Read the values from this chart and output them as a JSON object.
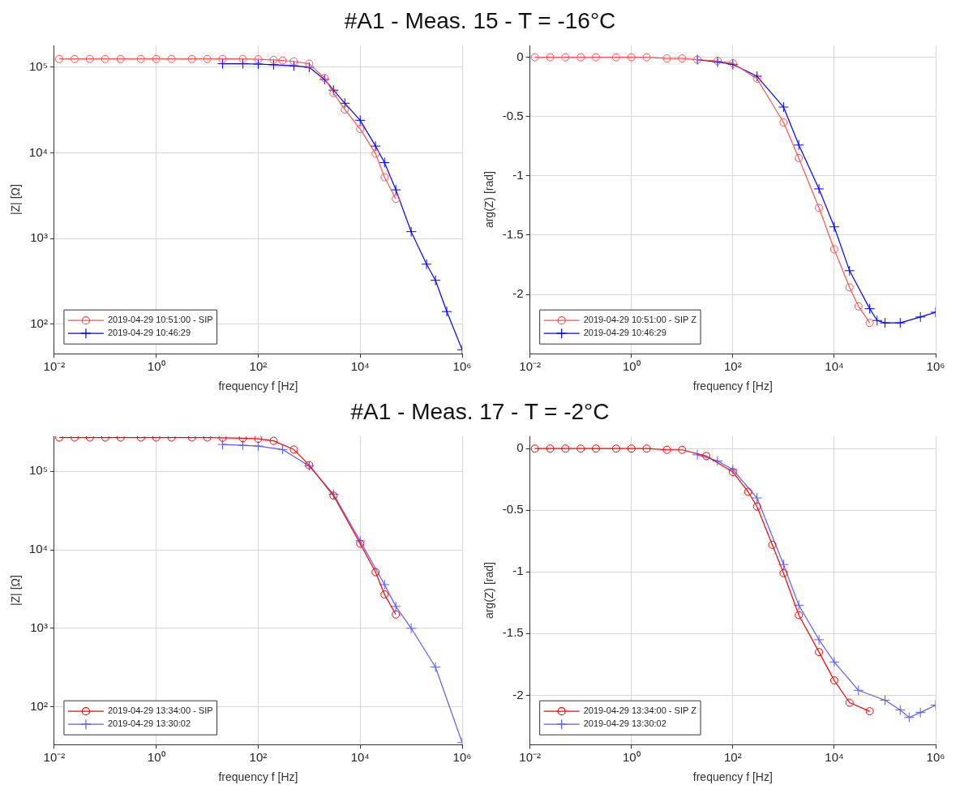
{
  "chart_data": [
    {
      "type": "line",
      "title": "#A1 - Meas. 15 - T = -16°C",
      "xlabel": "frequency f [Hz]",
      "ylabel": "|Z| [Ω]",
      "log": "xy",
      "grid": true,
      "legend": "bottom left",
      "xlim": [
        0.01,
        1000000
      ],
      "xticks": [
        {
          "value": 0.01,
          "label": "10⁻²"
        },
        {
          "value": 1,
          "label": "10⁰"
        },
        {
          "value": 100,
          "label": "10²"
        },
        {
          "value": 10000,
          "label": "10⁴"
        },
        {
          "value": 1000000,
          "label": "10⁶"
        }
      ],
      "ylim": [
        45,
        180000
      ],
      "yticks": [
        {
          "value": 100,
          "label": "10²"
        },
        {
          "value": 1000,
          "label": "10³"
        },
        {
          "value": 10000,
          "label": "10⁴"
        },
        {
          "value": 100000,
          "label": "10⁵"
        }
      ],
      "series": [
        {
          "name": "2019-04-29 10:51:00 - SIP",
          "color": "#ff5050",
          "marker": "circle",
          "x": [
            0.0125,
            0.025,
            0.05,
            0.1,
            0.2,
            0.5,
            1,
            2,
            5,
            10,
            20,
            50,
            100,
            200,
            300,
            500,
            1000,
            2000,
            3000,
            5000,
            10000,
            20000,
            30000,
            50000
          ],
          "values": [
            125000,
            125000,
            125000,
            125000,
            125000,
            125000,
            125000,
            125000,
            125000,
            125000,
            125000,
            125000,
            124000,
            122000,
            120000,
            117000,
            110000,
            75000,
            50000,
            32000,
            19000,
            9800,
            5200,
            2900
          ]
        },
        {
          "name": "2019-04-29 10:46:29",
          "color": "#0000ff",
          "marker": "cross",
          "x": [
            20,
            50,
            100,
            200,
            500,
            1000,
            2000,
            3000,
            5000,
            10000,
            20000,
            30000,
            50000,
            100000,
            200000,
            300000,
            500000,
            1000000
          ],
          "values": [
            110000,
            110000,
            109000,
            107000,
            104000,
            100000,
            72000,
            54000,
            38000,
            24000,
            12000,
            7700,
            3700,
            1200,
            500,
            324,
            140,
            50
          ]
        }
      ]
    },
    {
      "type": "line",
      "xlabel": "frequency f [Hz]",
      "ylabel": "arg(Z) [rad]",
      "log": "x",
      "grid": true,
      "legend": "bottom left",
      "xlim": [
        0.01,
        1000000
      ],
      "xticks": [
        {
          "value": 0.01,
          "label": "10⁻²"
        },
        {
          "value": 1,
          "label": "10⁰"
        },
        {
          "value": 100,
          "label": "10²"
        },
        {
          "value": 10000,
          "label": "10⁴"
        },
        {
          "value": 1000000,
          "label": "10⁶"
        }
      ],
      "ylim": [
        -2.5,
        0.1
      ],
      "yticks": [
        -2,
        -1.5,
        -1,
        -0.5,
        0
      ],
      "series": [
        {
          "name": "2019-04-29 10:51:00 - SIP Z",
          "color": "#ff5050",
          "marker": "circle",
          "x": [
            0.0125,
            0.025,
            0.05,
            0.1,
            0.2,
            0.5,
            1,
            2,
            5,
            10,
            20,
            50,
            100,
            300,
            1000,
            2000,
            5000,
            10000,
            20000,
            30000,
            50000
          ],
          "values": [
            0,
            0,
            0,
            0,
            0,
            0,
            0,
            0,
            -0.01,
            -0.01,
            -0.02,
            -0.03,
            -0.05,
            -0.18,
            -0.55,
            -0.85,
            -1.27,
            -1.62,
            -1.94,
            -2.1,
            -2.24
          ]
        },
        {
          "name": "2019-04-29 10:46:29",
          "color": "#0000ff",
          "marker": "cross",
          "x": [
            20,
            50,
            100,
            300,
            1000,
            2000,
            5000,
            10000,
            20000,
            50000,
            70000,
            100000,
            200000,
            500000,
            1000000
          ],
          "values": [
            -0.02,
            -0.04,
            -0.06,
            -0.16,
            -0.42,
            -0.74,
            -1.11,
            -1.43,
            -1.8,
            -2.12,
            -2.22,
            -2.24,
            -2.24,
            -2.19,
            -2.15
          ]
        }
      ]
    },
    {
      "type": "line",
      "title": "#A1 - Meas. 17 - T = -2°C",
      "xlabel": "frequency f [Hz]",
      "ylabel": "|Z| [Ω]",
      "log": "xy",
      "grid": true,
      "legend": "bottom left",
      "xlim": [
        0.01,
        1000000
      ],
      "xticks": [
        {
          "value": 0.01,
          "label": "10⁻²"
        },
        {
          "value": 1,
          "label": "10⁰"
        },
        {
          "value": 100,
          "label": "10²"
        },
        {
          "value": 10000,
          "label": "10⁴"
        },
        {
          "value": 1000000,
          "label": "10⁶"
        }
      ],
      "ylim": [
        33,
        280000
      ],
      "yticks": [
        {
          "value": 100,
          "label": "10²"
        },
        {
          "value": 1000,
          "label": "10³"
        },
        {
          "value": 10000,
          "label": "10⁴"
        },
        {
          "value": 100000,
          "label": "10⁵"
        }
      ],
      "series": [
        {
          "name": "2019-04-29 13:34:00 - SIP",
          "color": "#ff0000",
          "marker": "circle",
          "x": [
            0.0125,
            0.025,
            0.05,
            0.1,
            0.2,
            0.5,
            1,
            2,
            5,
            10,
            20,
            50,
            100,
            200,
            500,
            1000,
            3000,
            10000,
            20000,
            30000,
            50000
          ],
          "values": [
            270000,
            270000,
            270000,
            270000,
            270000,
            270000,
            270000,
            270000,
            270000,
            270000,
            268000,
            265000,
            260000,
            245000,
            190000,
            120000,
            49000,
            12000,
            5200,
            2700,
            1500
          ]
        },
        {
          "name": "2019-04-29 13:30:02",
          "color": "#5a5aff",
          "marker": "cross",
          "x": [
            20,
            50,
            100,
            300,
            1000,
            3000,
            10000,
            30000,
            50000,
            100000,
            300000,
            1000000
          ],
          "values": [
            220000,
            215000,
            210000,
            190000,
            117000,
            51000,
            13000,
            3600,
            1900,
            1000,
            320,
            35
          ]
        }
      ]
    },
    {
      "type": "line",
      "xlabel": "frequency f [Hz]",
      "ylabel": "arg(Z) [rad]",
      "log": "x",
      "grid": true,
      "legend": "bottom left",
      "xlim": [
        0.01,
        1000000
      ],
      "xticks": [
        {
          "value": 0.01,
          "label": "10⁻²"
        },
        {
          "value": 1,
          "label": "10⁰"
        },
        {
          "value": 100,
          "label": "10²"
        },
        {
          "value": 10000,
          "label": "10⁴"
        },
        {
          "value": 1000000,
          "label": "10⁶"
        }
      ],
      "ylim": [
        -2.4,
        0.1
      ],
      "yticks": [
        -2,
        -1.5,
        -1,
        -0.5,
        0
      ],
      "series": [
        {
          "name": "2019-04-29 13:34:00 - SIP Z",
          "color": "#ff0000",
          "marker": "circle",
          "x": [
            0.0125,
            0.025,
            0.05,
            0.1,
            0.2,
            0.5,
            1,
            2,
            5,
            10,
            30,
            100,
            200,
            300,
            600,
            1000,
            2000,
            5000,
            10000,
            20000,
            50000
          ],
          "values": [
            0,
            0,
            0,
            0,
            0,
            0,
            0,
            0,
            -0.01,
            -0.01,
            -0.06,
            -0.19,
            -0.35,
            -0.47,
            -0.78,
            -1.01,
            -1.35,
            -1.65,
            -1.88,
            -2.06,
            -2.13
          ]
        },
        {
          "name": "2019-04-29 13:30:02",
          "color": "#5a5aff",
          "marker": "cross",
          "x": [
            20,
            50,
            100,
            300,
            1000,
            2000,
            5000,
            10000,
            30000,
            100000,
            200000,
            300000,
            500000,
            1000000
          ],
          "values": [
            -0.05,
            -0.1,
            -0.17,
            -0.4,
            -0.94,
            -1.27,
            -1.55,
            -1.73,
            -1.96,
            -2.04,
            -2.12,
            -2.18,
            -2.14,
            -2.08
          ]
        }
      ]
    }
  ]
}
